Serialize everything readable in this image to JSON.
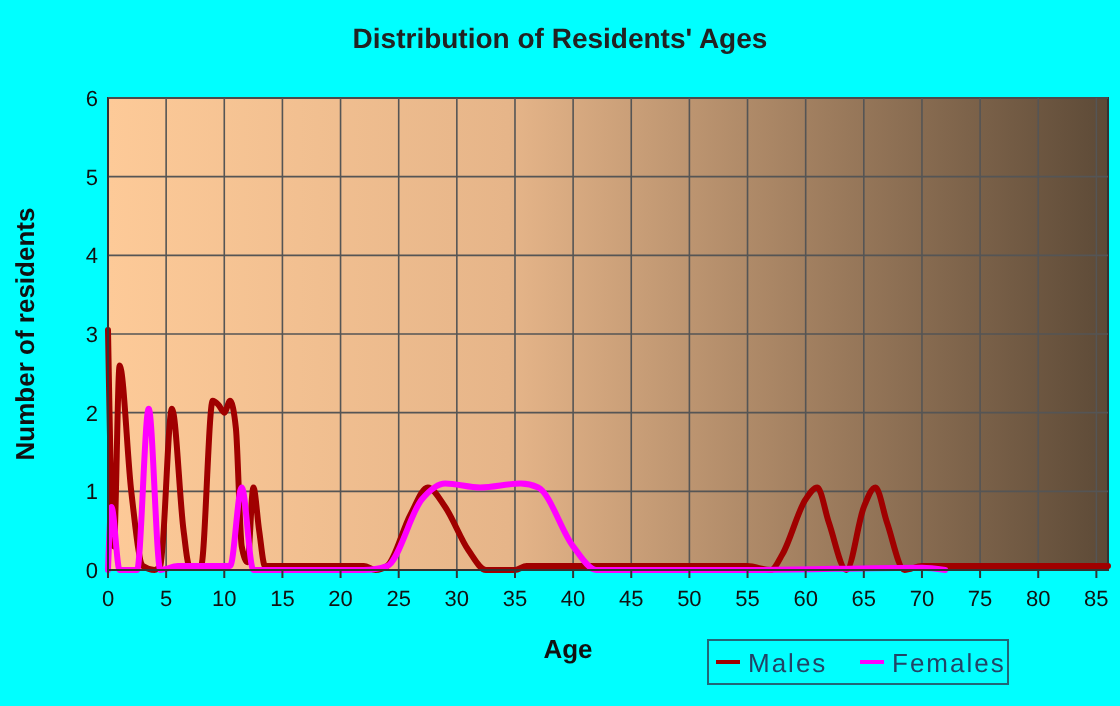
{
  "chart_data": {
    "type": "line",
    "title": "Distribution of Residents' Ages",
    "xlabel": "Age",
    "ylabel": "Number of residents",
    "xlim": [
      0,
      86
    ],
    "xticks": [
      0,
      5,
      10,
      15,
      20,
      25,
      30,
      35,
      40,
      45,
      50,
      55,
      60,
      65,
      70,
      75,
      80,
      85
    ],
    "ylim": [
      0,
      6
    ],
    "yticks": [
      0,
      1,
      2,
      3,
      4,
      5,
      6
    ],
    "grid": true,
    "legend": "bottom right",
    "series": [
      {
        "name": "Males",
        "color": "#a00000",
        "x": [
          0,
          0.5,
          1,
          2,
          3,
          4,
          4.5,
          5.5,
          6.5,
          7,
          8,
          9,
          9.5,
          10,
          10.5,
          11,
          11.5,
          12,
          12.5,
          13,
          13.5,
          15,
          22,
          23,
          24,
          26,
          27.5,
          29,
          31,
          32.5,
          35,
          36,
          55,
          57,
          58,
          60,
          61,
          62,
          63.5,
          65,
          66,
          67,
          68.5,
          70,
          86
        ],
        "values": [
          3.05,
          0.3,
          2.6,
          1.0,
          0.05,
          0,
          0.05,
          2.05,
          0.5,
          0.05,
          0.05,
          2.15,
          2.1,
          2.0,
          2.15,
          1.8,
          0.3,
          0.1,
          1.05,
          0.5,
          0.05,
          0.05,
          0.05,
          0,
          0.05,
          0.7,
          1.05,
          0.8,
          0.25,
          0,
          0,
          0.05,
          0.05,
          0,
          0.2,
          0.9,
          1.05,
          0.6,
          0,
          0.8,
          1.05,
          0.6,
          0,
          0.05,
          0.05
        ]
      },
      {
        "name": "Females",
        "color": "#ff00ff",
        "x": [
          0,
          0.3,
          1,
          2.5,
          3.5,
          4.5,
          6,
          10.5,
          11.5,
          12.5,
          22,
          24,
          27,
          29,
          32,
          35.5,
          37,
          40,
          42,
          55,
          70,
          72
        ],
        "values": [
          0,
          0.8,
          0,
          0,
          2.05,
          0,
          0.05,
          0.05,
          1.05,
          0,
          0,
          0.05,
          0.9,
          1.1,
          1.05,
          1.1,
          1.05,
          0.3,
          0,
          0,
          0.03,
          0
        ]
      }
    ]
  }
}
